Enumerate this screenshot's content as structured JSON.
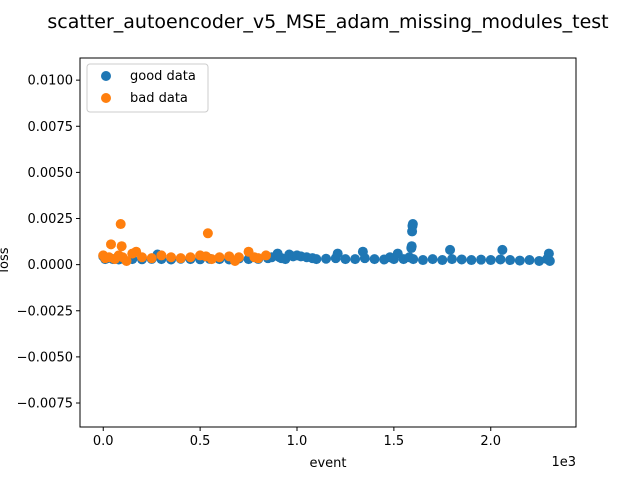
{
  "chart_data": {
    "type": "scatter",
    "title": "scatter_autoencoder_v5_MSE_adam_missing_modules_test",
    "xlabel": "event",
    "ylabel": "loss",
    "x_offset_text": "1e3",
    "xlim": [
      -120,
      2440
    ],
    "ylim": [
      -0.0088,
      0.0112
    ],
    "x_ticks": [
      0,
      500,
      1000,
      1500,
      2000
    ],
    "x_tick_labels": [
      "0.0",
      "0.5",
      "1.0",
      "1.5",
      "2.0"
    ],
    "y_ticks": [
      -0.0075,
      -0.005,
      -0.0025,
      0.0,
      0.0025,
      0.005,
      0.0075,
      0.01
    ],
    "y_tick_labels": [
      "−0.0075",
      "−0.0050",
      "−0.0025",
      "0.0000",
      "0.0025",
      "0.0050",
      "0.0075",
      "0.0100"
    ],
    "grid": false,
    "legend_position": "top-left",
    "series": [
      {
        "name": "good data",
        "color": "#1f77b4",
        "points": [
          [
            0,
            0.00045
          ],
          [
            10,
            0.0003
          ],
          [
            20,
            0.00035
          ],
          [
            50,
            0.0003
          ],
          [
            80,
            0.00028
          ],
          [
            100,
            0.00032
          ],
          [
            150,
            0.0003
          ],
          [
            200,
            0.00029
          ],
          [
            250,
            0.00031
          ],
          [
            280,
            0.00055
          ],
          [
            300,
            0.0003
          ],
          [
            350,
            0.00028
          ],
          [
            400,
            0.00032
          ],
          [
            450,
            0.0003
          ],
          [
            500,
            0.00029
          ],
          [
            550,
            0.00031
          ],
          [
            600,
            0.0003
          ],
          [
            650,
            0.00028
          ],
          [
            700,
            0.00033
          ],
          [
            750,
            0.0003
          ],
          [
            800,
            0.00031
          ],
          [
            850,
            0.00035
          ],
          [
            870,
            0.0004
          ],
          [
            900,
            0.0006
          ],
          [
            910,
            0.0004
          ],
          [
            920,
            0.00035
          ],
          [
            940,
            0.0003
          ],
          [
            960,
            0.00055
          ],
          [
            980,
            0.00045
          ],
          [
            1000,
            0.0005
          ],
          [
            1020,
            0.00045
          ],
          [
            1050,
            0.0004
          ],
          [
            1080,
            0.00035
          ],
          [
            1100,
            0.0003
          ],
          [
            1150,
            0.00032
          ],
          [
            1200,
            0.00035
          ],
          [
            1210,
            0.0006
          ],
          [
            1250,
            0.0003
          ],
          [
            1300,
            0.0003
          ],
          [
            1340,
            0.0007
          ],
          [
            1350,
            0.00035
          ],
          [
            1400,
            0.0003
          ],
          [
            1450,
            0.00028
          ],
          [
            1480,
            0.0004
          ],
          [
            1500,
            0.0003
          ],
          [
            1520,
            0.0006
          ],
          [
            1550,
            0.0003
          ],
          [
            1580,
            0.0004
          ],
          [
            1590,
            0.0009
          ],
          [
            1592,
            0.001
          ],
          [
            1594,
            0.0018
          ],
          [
            1596,
            0.0021
          ],
          [
            1598,
            0.0022
          ],
          [
            1600,
            0.0003
          ],
          [
            1650,
            0.00025
          ],
          [
            1700,
            0.0003
          ],
          [
            1750,
            0.00025
          ],
          [
            1790,
            0.0008
          ],
          [
            1800,
            0.0003
          ],
          [
            1850,
            0.00028
          ],
          [
            1900,
            0.00025
          ],
          [
            1950,
            0.00027
          ],
          [
            2000,
            0.00025
          ],
          [
            2050,
            0.00028
          ],
          [
            2060,
            0.0008
          ],
          [
            2100,
            0.00025
          ],
          [
            2150,
            0.00022
          ],
          [
            2200,
            0.00025
          ],
          [
            2250,
            0.0002
          ],
          [
            2290,
            0.0003
          ],
          [
            2300,
            0.0006
          ],
          [
            2305,
            0.0002
          ]
        ]
      },
      {
        "name": "bad data",
        "color": "#ff7f0e",
        "points": [
          [
            0,
            0.0005
          ],
          [
            10,
            0.00035
          ],
          [
            30,
            0.0004
          ],
          [
            40,
            0.0011
          ],
          [
            60,
            0.0003
          ],
          [
            80,
            0.0005
          ],
          [
            90,
            0.0022
          ],
          [
            95,
            0.001
          ],
          [
            100,
            0.0004
          ],
          [
            120,
            0.0002
          ],
          [
            150,
            0.0006
          ],
          [
            170,
            0.0007
          ],
          [
            200,
            0.0004
          ],
          [
            250,
            0.00035
          ],
          [
            300,
            0.0005
          ],
          [
            350,
            0.0004
          ],
          [
            400,
            0.00035
          ],
          [
            450,
            0.0004
          ],
          [
            500,
            0.0005
          ],
          [
            530,
            0.00045
          ],
          [
            540,
            0.0017
          ],
          [
            560,
            0.0003
          ],
          [
            600,
            0.0004
          ],
          [
            650,
            0.00045
          ],
          [
            680,
            0.0002
          ],
          [
            700,
            0.0004
          ],
          [
            750,
            0.0007
          ],
          [
            780,
            0.0004
          ],
          [
            800,
            0.00035
          ],
          [
            840,
            0.0005
          ]
        ]
      }
    ]
  }
}
